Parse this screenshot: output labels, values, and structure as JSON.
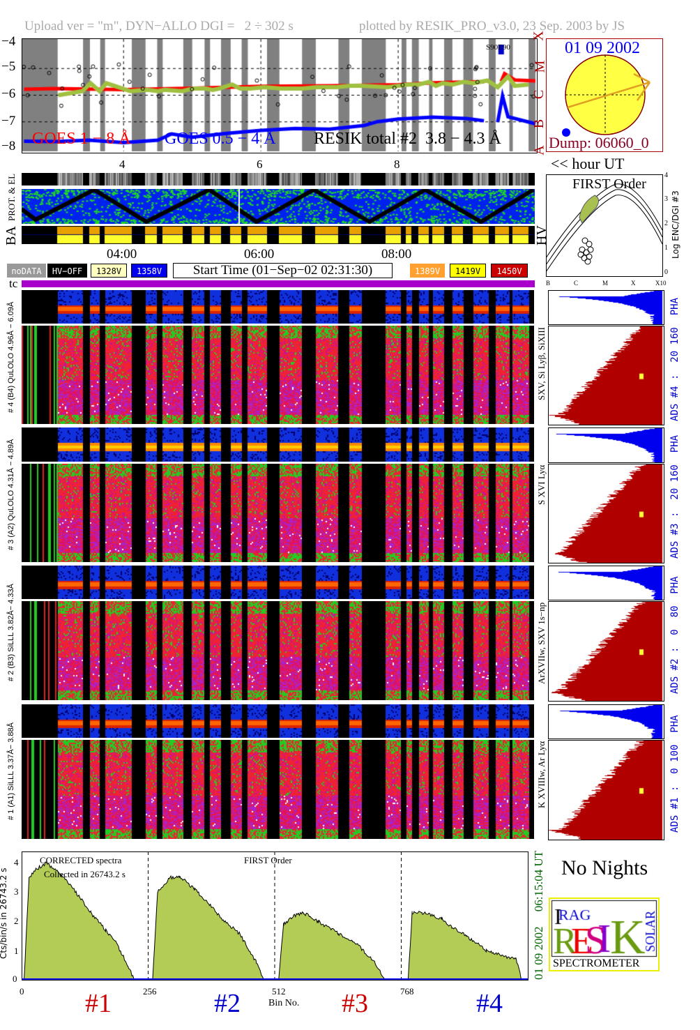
{
  "header": {
    "upload": "Upload ver = \"m\", DYN−ALLO DGI =   2 ÷ 302 s",
    "plotted": "plotted by RESIK_PRO_v3.0, 23 Sep. 2003 by JS"
  },
  "colors": {
    "goes_long": "#ff0000",
    "goes_short": "#0000ff",
    "resik": "#a0c040",
    "gray_band": "#808080",
    "sun": "#ffff44",
    "arrow": "#e0a020",
    "spectrum_fill": "#b2cc55",
    "hist_red": "#b00000",
    "hist_blue": "#0000ee",
    "tc_bar": "#aa00cc",
    "dark_red": "#880022",
    "ads_blue": "#0000cc"
  },
  "lightcurve": {
    "legend_goes_long": "GOES 1 − 8 Å",
    "legend_goes_short": "GOES 0.5 − 4 Å",
    "legend_resik": "RESIK total #2  3.8 − 4.3 Å",
    "flare_classes": [
      "X",
      "M",
      "C",
      "B",
      "A"
    ],
    "marker": "S90E90",
    "yticks": [
      "−4",
      "−5",
      "−6",
      "−7",
      "−8"
    ],
    "xticks": [
      "4",
      "6",
      "8"
    ],
    "xunit": "<< hour UT"
  },
  "sun": {
    "date": "01 09 2002",
    "dump": "Dump: 06060_0"
  },
  "panels": {
    "prot_label": "PROT. & EL",
    "ba_label": "BA",
    "hv_label": "HV",
    "time_ticks": [
      "04:00",
      "06:00",
      "08:00"
    ],
    "tc_label": "tc"
  },
  "legend": {
    "nodata": "noDATA",
    "hvoff": "HV−OFF",
    "v1328": "1328V",
    "v1358": "1358V",
    "start_time": "Start Time (01−Sep−02 02:31:30)",
    "v1389": "1389V",
    "v1419": "1419V",
    "v1450": "1450V"
  },
  "first_order": {
    "title": "FIRST Order",
    "ylabel": "Log ENC/DGI #3",
    "yticks": [
      "0",
      "1",
      "2",
      "3",
      "4"
    ],
    "xticks": [
      "B",
      "C",
      "M",
      "X",
      "X10"
    ]
  },
  "channels": [
    {
      "left_label": "# 4 (B4) QuLOLO 4.96Å − 6.09Å",
      "lines": "SXV, Si Lyβ, SiXIII",
      "ads": "ADS #4 :  20 160  PHA"
    },
    {
      "left_label": "# 3 (A2) QuLOLO 4.31Å − 4.89Å",
      "lines": "S XVI Lyα",
      "ads": "ADS #3 :  20 160  PHA"
    },
    {
      "left_label": "# 2 (B3) SiLLL 3.82Å− 4.33Å",
      "lines": "ArXVIIw, SXV 1s−np",
      "ads": "ADS #2 :  0  80  PHA"
    },
    {
      "left_label": "# 1 (A1) SiLLL 3.37Å− 3.88Å",
      "lines": "K XVIIIw, Ar Lyα",
      "ads": "ADS #1 :  0 100  PHA"
    }
  ],
  "spectrum": {
    "note1": "CORRECTED spectra",
    "note2": "Collected in 26743.2 s",
    "note3": "FIRST Order",
    "ylabel": "Cts/bin/s in 26743.2 s",
    "yticks": [
      "0",
      "1",
      "2",
      "3",
      "4"
    ],
    "xticks": [
      "0",
      "256",
      "512",
      "768"
    ],
    "xlabel": "Bin No.",
    "crystals": [
      "#1",
      "#2",
      "#3",
      "#4"
    ],
    "timestamp": "01 09 2002     06:15:04 UT"
  },
  "side": {
    "no_nights": "No Nights",
    "logo_text": "RESIK SOLAR SPECTROMETER IRAG",
    "logo_label": "SPECTROMETER"
  },
  "chart_data": [
    {
      "type": "line",
      "title": "",
      "xlabel": "hour UT",
      "ylabel": "",
      "xlim": [
        2.525,
        10.0
      ],
      "ylim": [
        -8,
        -4
      ],
      "grid": "dashed at 5, 6, 7 and 4, 6, 8 h",
      "hv_off_intervals_hours": [
        [
          2.52,
          3.04
        ],
        [
          3.41,
          3.51
        ],
        [
          3.66,
          3.73
        ],
        [
          4.12,
          4.32
        ],
        [
          4.49,
          4.57
        ],
        [
          4.87,
          5.0
        ],
        [
          5.18,
          5.26
        ],
        [
          5.42,
          5.56
        ],
        [
          5.72,
          5.81
        ],
        [
          6.09,
          6.27
        ],
        [
          6.6,
          6.8
        ],
        [
          7.13,
          7.29
        ],
        [
          7.47,
          7.82
        ],
        [
          8.05,
          8.12
        ],
        [
          8.2,
          8.3
        ],
        [
          8.45,
          8.5
        ],
        [
          8.67,
          8.79
        ],
        [
          8.95,
          9.09
        ],
        [
          9.32,
          9.42
        ],
        [
          9.62,
          9.67
        ],
        [
          9.9,
          10.0
        ]
      ],
      "series": [
        {
          "name": "GOES 1 − 8 Å",
          "x": [
            2.55,
            3.0,
            4.0,
            5.0,
            6.0,
            7.0,
            8.0,
            8.5,
            9.0,
            9.25,
            9.4,
            9.5,
            9.55,
            9.7,
            10.0
          ],
          "y": [
            -5.75,
            -5.78,
            -5.78,
            -5.72,
            -5.68,
            -5.65,
            -5.6,
            -5.55,
            -5.52,
            -5.5,
            null,
            -5.5,
            -5.2,
            -5.45,
            -5.45
          ]
        },
        {
          "name": "GOES 0.5 − 4 Å",
          "x": [
            2.55,
            3.0,
            3.5,
            4.0,
            4.5,
            4.7,
            5.0,
            5.5,
            6.0,
            6.5,
            7.0,
            7.5,
            7.7,
            8.0,
            8.5,
            9.0,
            9.25,
            9.4,
            9.45,
            9.52,
            9.6,
            10.0
          ],
          "y": [
            -7.72,
            -7.75,
            -7.7,
            -7.75,
            -7.7,
            -7.45,
            -7.6,
            -7.45,
            -7.3,
            -7.25,
            -7.3,
            -7.15,
            -7.0,
            -6.9,
            -6.85,
            -6.9,
            -6.95,
            null,
            -7.0,
            -6.05,
            -6.8,
            -7.05
          ]
        },
        {
          "name": "RESIK total #2  3.8 − 4.3 Å",
          "x": [
            3.05,
            3.4,
            3.52,
            3.65,
            3.75,
            4.1,
            4.35,
            4.5,
            4.6,
            4.85,
            5.02,
            5.2,
            5.3,
            5.4,
            5.58,
            5.7,
            5.85,
            6.05,
            6.3,
            6.6,
            6.82,
            7.1,
            7.3,
            7.45,
            7.85,
            8.0,
            8.15,
            8.3,
            8.45,
            8.55,
            8.65,
            8.8,
            8.95,
            9.1,
            9.3,
            9.45,
            9.6,
            9.7,
            9.9
          ],
          "y": [
            -6.0,
            -5.85,
            -5.55,
            -5.85,
            -5.55,
            -5.85,
            -5.8,
            -5.85,
            -5.8,
            -5.85,
            -5.75,
            -5.75,
            -5.8,
            -5.75,
            -5.6,
            -5.75,
            -5.75,
            -5.7,
            -5.75,
            -5.75,
            -5.7,
            -5.7,
            -5.65,
            -5.65,
            -5.7,
            -5.65,
            -5.6,
            -5.6,
            -5.5,
            -5.65,
            -5.55,
            -5.6,
            -5.5,
            -5.55,
            -5.45,
            -5.7,
            -5.3,
            -5.65,
            -5.6
          ]
        }
      ]
    },
    {
      "type": "area",
      "title": "FIRST Order",
      "xlabel": "Bin No.",
      "ylabel": "Cts/bin/s in 26743.2 s",
      "xlim": [
        0,
        1024
      ],
      "ylim": [
        0,
        4.4
      ],
      "segment_dividers": [
        256,
        512,
        768
      ],
      "series": [
        {
          "name": "#1",
          "x": [
            5,
            15,
            30,
            50,
            80,
            110,
            140,
            170,
            190,
            215,
            228
          ],
          "y": [
            0,
            3.5,
            3.8,
            4.0,
            3.6,
            3.0,
            2.3,
            1.7,
            1.3,
            0.5,
            0
          ]
        },
        {
          "name": "#2",
          "x": [
            265,
            275,
            300,
            320,
            350,
            380,
            410,
            440,
            475,
            490
          ],
          "y": [
            0,
            3.0,
            3.5,
            3.55,
            3.1,
            2.6,
            2.0,
            1.6,
            0.6,
            0
          ]
        },
        {
          "name": "#3",
          "x": [
            520,
            530,
            550,
            570,
            600,
            640,
            680,
            715,
            735
          ],
          "y": [
            0,
            1.9,
            2.2,
            2.3,
            2.0,
            1.6,
            1.2,
            0.6,
            0
          ]
        },
        {
          "name": "#4",
          "x": [
            782,
            790,
            810,
            850,
            870,
            900,
            940,
            1000,
            1012
          ],
          "y": [
            0,
            2.3,
            2.3,
            2.1,
            1.8,
            1.5,
            1.0,
            0.7,
            0
          ]
        }
      ]
    }
  ]
}
